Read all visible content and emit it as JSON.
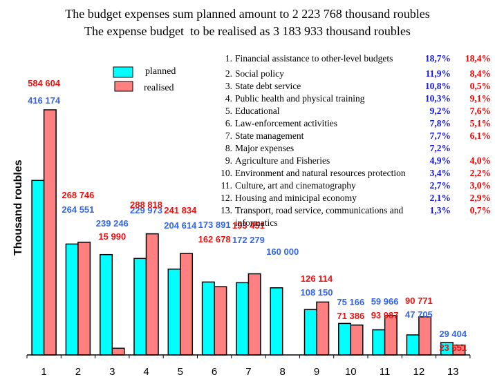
{
  "titles": {
    "line1": "The budget expenses sum planned amount to 2 223 768 thousand roubles",
    "line2": "The expense budget  to be realised as 3 183 933 thousand roubles"
  },
  "legend": {
    "planned": "planned",
    "realised": "realised"
  },
  "colors": {
    "planned_bar": "#00ffff",
    "realised_bar": "#ff8080",
    "planned_text": "#3366ee",
    "realised_text": "#ee1111",
    "planned_pct": "#1515e0",
    "realised_pct": "#ee0000"
  },
  "categories_table": [
    {
      "num": "1.",
      "name": "Financial assistance to other-level budgets",
      "planned_pct": "18,7%",
      "realised_pct": "18,4%"
    },
    {
      "num": "2.",
      "name": "Social policy",
      "planned_pct": "11,9%",
      "realised_pct": "8,4%"
    },
    {
      "num": "3.",
      "name": "State debt service",
      "planned_pct": "10,8%",
      "realised_pct": "0,5%"
    },
    {
      "num": "4.",
      "name": "Public health and physical training",
      "planned_pct": "10,3%",
      "realised_pct": "9,1%"
    },
    {
      "num": "5.",
      "name": "Educational",
      "planned_pct": "9,2%",
      "realised_pct": "7,6%"
    },
    {
      "num": "6.",
      "name": "Law-enforcement activities",
      "planned_pct": "7,8%",
      "realised_pct": "5,1%"
    },
    {
      "num": "7.",
      "name": "State management",
      "planned_pct": "7,7%",
      "realised_pct": "6,1%"
    },
    {
      "num": "8.",
      "name": "Major expenses",
      "planned_pct": "7,2%",
      "realised_pct": ""
    },
    {
      "num": "9.",
      "name": "Agriculture and Fisheries",
      "planned_pct": "4,9%",
      "realised_pct": "4,0%"
    },
    {
      "num": "10.",
      "name": "Environment and natural resources protection",
      "planned_pct": "3,4%",
      "realised_pct": "2,2%"
    },
    {
      "num": "11.",
      "name": "Culture, art and cinematography",
      "planned_pct": "2,7%",
      "realised_pct": "3,0%"
    },
    {
      "num": "12.",
      "name": "Housing and minicipal economy",
      "planned_pct": "2,1%",
      "realised_pct": "2,9%"
    },
    {
      "num": "13.",
      "name": "Transport, road service, communications and informatics",
      "planned_pct": "1,3%",
      "realised_pct": "0,7%"
    }
  ],
  "chart_data": {
    "type": "bar",
    "title": "The budget expenses sum planned amount to 2 223 768 thousand roubles / The expense budget  to be realised as 3 183 933 thousand roubles",
    "xlabel": "",
    "ylabel": "Thousand roubles",
    "categories": [
      "1",
      "2",
      "3",
      "4",
      "5",
      "6",
      "7",
      "8",
      "9",
      "10",
      "11",
      "12",
      "13"
    ],
    "ylim": [
      0,
      584604
    ],
    "grid": false,
    "legend_position": "top-left",
    "series": [
      {
        "name": "planned",
        "values": [
          416174,
          264551,
          239246,
          229973,
          204614,
          173891,
          172279,
          160000,
          108150,
          75166,
          59966,
          47705,
          29404
        ],
        "labels": [
          "416 174",
          "264 551",
          "239 246",
          "229 973",
          "204 614",
          "173 891",
          "172 279",
          "160 000",
          "108 150",
          "75 166",
          "59 966",
          "47 705",
          "29 404"
        ]
      },
      {
        "name": "realised",
        "values": [
          584604,
          268746,
          15990,
          288818,
          241834,
          162678,
          193451,
          null,
          126114,
          71386,
          93987,
          90771,
          23551
        ],
        "labels": [
          "584 604",
          "268 746",
          "15 990",
          "288 818",
          "241 834",
          "162 678",
          "193 451",
          "",
          "126 114",
          "71 386",
          "93 987",
          "90 771",
          "23 551"
        ]
      }
    ]
  }
}
